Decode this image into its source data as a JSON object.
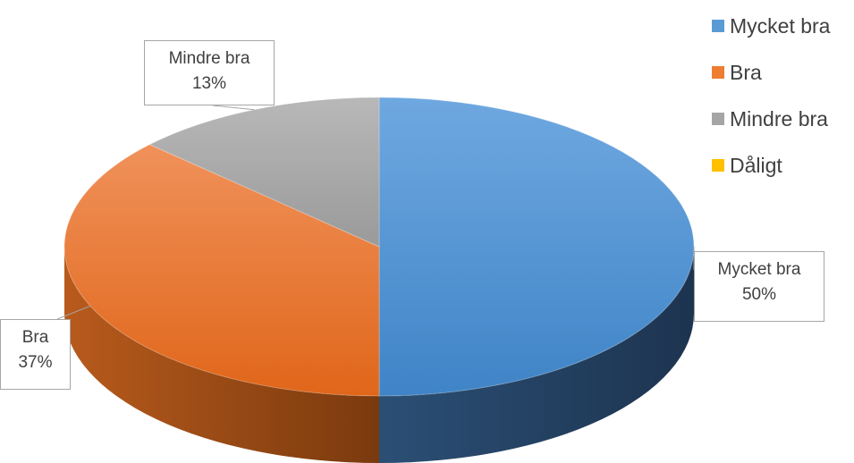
{
  "chart_data": {
    "type": "pie",
    "categories": [
      "Mycket bra",
      "Bra",
      "Mindre bra",
      "Dåligt"
    ],
    "values": [
      50,
      37,
      13,
      0
    ],
    "percent_labels": [
      "50%",
      "37%",
      "13%",
      "0%"
    ],
    "colors": [
      "#5b9bd5",
      "#ed7d31",
      "#a5a5a5",
      "#ffc000"
    ],
    "title": "",
    "legend_position": "right",
    "style": "3d"
  }
}
